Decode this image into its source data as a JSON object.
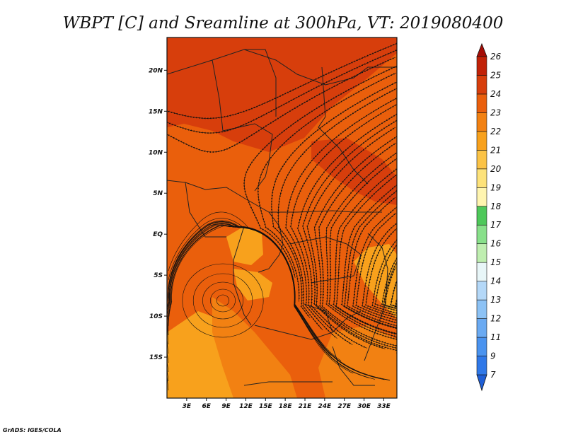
{
  "chart_data": {
    "type": "map",
    "title": "WBPT [C] and Sreamline at 300hPa, VT: 2019080400",
    "variable": "WBPT [C]",
    "overlay": "Sreamline",
    "level": "300hPa",
    "valid_time": "2019080400",
    "lon_range": [
      0,
      35
    ],
    "lat_range": [
      -20,
      24
    ],
    "x_ticks": [
      {
        "value": 3,
        "label": "3E"
      },
      {
        "value": 6,
        "label": "6E"
      },
      {
        "value": 9,
        "label": "9E"
      },
      {
        "value": 12,
        "label": "12E"
      },
      {
        "value": 15,
        "label": "15E"
      },
      {
        "value": 18,
        "label": "18E"
      },
      {
        "value": 21,
        "label": "21E"
      },
      {
        "value": 24,
        "label": "24E"
      },
      {
        "value": 27,
        "label": "27E"
      },
      {
        "value": 30,
        "label": "30E"
      },
      {
        "value": 33,
        "label": "33E"
      }
    ],
    "y_ticks": [
      {
        "value": 20,
        "label": "20N"
      },
      {
        "value": 15,
        "label": "15N"
      },
      {
        "value": 10,
        "label": "10N"
      },
      {
        "value": 5,
        "label": "5N"
      },
      {
        "value": 0,
        "label": "EQ"
      },
      {
        "value": -5,
        "label": "5S"
      },
      {
        "value": -10,
        "label": "10S"
      },
      {
        "value": -15,
        "label": "15S"
      }
    ],
    "colorbar": {
      "labels": [
        "7",
        "9",
        "11",
        "12",
        "13",
        "14",
        "15",
        "16",
        "17",
        "18",
        "19",
        "20",
        "21",
        "22",
        "23",
        "24",
        "25",
        "26"
      ],
      "colors": [
        "#1f5fd6",
        "#2f78e8",
        "#4a93ef",
        "#6aaaf2",
        "#8cc2f5",
        "#b4d8f8",
        "#e8f6f8",
        "#bfeeb0",
        "#88e08a",
        "#4ec85a",
        "#fff5b0",
        "#fde27a",
        "#fbc346",
        "#f8a11c",
        "#f28112",
        "#ea5f0c",
        "#d73e0c",
        "#c12208",
        "#a50d06"
      ]
    },
    "regions": [
      {
        "name": "background",
        "value": 23
      },
      {
        "name": "north-band",
        "value": 24
      },
      {
        "name": "northeast-band",
        "value": 24
      },
      {
        "name": "eq-west-pocket",
        "value": 21
      },
      {
        "name": "congo-pocket",
        "value": 21
      },
      {
        "name": "southwest-tongue",
        "value": 21
      },
      {
        "name": "southwest-plume",
        "value": 22
      },
      {
        "name": "east-coast",
        "value": 21
      },
      {
        "name": "southeast-zone",
        "value": 22
      }
    ]
  },
  "footer": {
    "credit": "GrADS: IGES/COLA"
  }
}
